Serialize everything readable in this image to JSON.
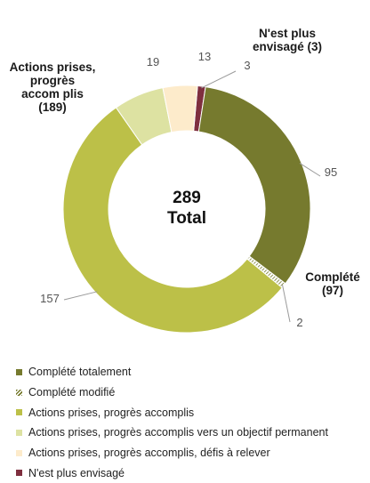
{
  "chart_data": {
    "type": "pie",
    "variant": "donut",
    "center": {
      "value": "289",
      "label": "Total"
    },
    "slices": [
      {
        "name": "N'est plus envisagé",
        "value": 3,
        "label": "3",
        "color": "#7f2f3f",
        "pattern": "solid"
      },
      {
        "name": "Complété totalement",
        "value": 95,
        "label": "95",
        "color": "#767a2e",
        "pattern": "solid"
      },
      {
        "name": "Complété modifié",
        "value": 2,
        "label": "2",
        "color": "#767a2e",
        "pattern": "hatch"
      },
      {
        "name": "Actions prises, progrès accomplis",
        "value": 157,
        "label": "157",
        "color": "#bcc048",
        "pattern": "solid"
      },
      {
        "name": "Actions prises, progrès accomplis vers un objectif permanent",
        "value": 19,
        "label": "19",
        "color": "#dde2a2",
        "pattern": "solid"
      },
      {
        "name": "Actions prises, progrès accomplis, défis à relever",
        "value": 13,
        "label": "13",
        "color": "#fdebcb",
        "pattern": "solid"
      }
    ],
    "legend": {
      "position": "bottom",
      "items": [
        {
          "label": "Complété totalement",
          "color": "#767a2e",
          "pattern": "solid"
        },
        {
          "label": "Complété modifié",
          "color": "#767a2e",
          "pattern": "hatch"
        },
        {
          "label": "Actions prises, progrès accomplis",
          "color": "#bcc048",
          "pattern": "solid"
        },
        {
          "label": "Actions prises, progrès accomplis vers un objectif permanent",
          "color": "#dde2a2",
          "pattern": "solid"
        },
        {
          "label": "Actions prises, progrès accomplis, défis à relever",
          "color": "#fdebcb",
          "pattern": "solid"
        },
        {
          "label": "N'est plus envisagé",
          "color": "#7f2f3f",
          "pattern": "solid"
        }
      ]
    },
    "group_labels": {
      "abandoned": [
        "N'est plus",
        "envisagé (3)"
      ],
      "actions": [
        "Actions prises,",
        "progrès",
        "accom plis",
        "(189)"
      ],
      "completed": [
        "Complété",
        "(97)"
      ]
    }
  }
}
